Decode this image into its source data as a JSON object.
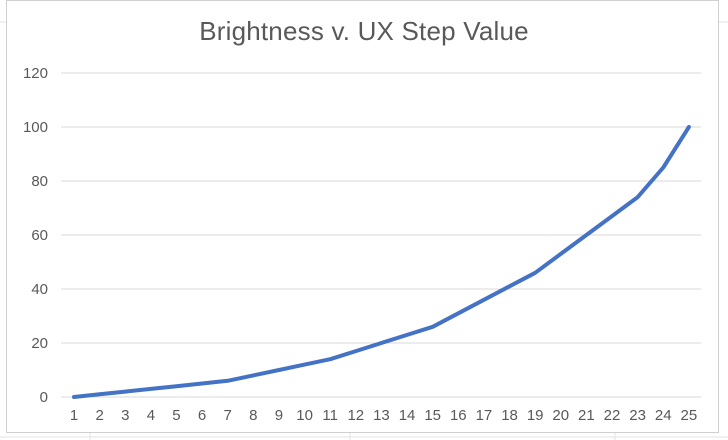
{
  "chart_data": {
    "type": "line",
    "title": "Brightness v. UX Step Value",
    "xlabel": "",
    "ylabel": "",
    "x": [
      1,
      2,
      3,
      4,
      5,
      6,
      7,
      8,
      9,
      10,
      11,
      12,
      13,
      14,
      15,
      16,
      17,
      18,
      19,
      20,
      21,
      22,
      23,
      24,
      25
    ],
    "series": [
      {
        "values": [
          0,
          1,
          2,
          3,
          4,
          5,
          6,
          8,
          10,
          12,
          14,
          17,
          20,
          23,
          26,
          31,
          36,
          41,
          46,
          53,
          60,
          67,
          74,
          85,
          100
        ]
      }
    ],
    "ylim": [
      0,
      120
    ],
    "yticks": [
      0,
      20,
      40,
      60,
      80,
      100,
      120
    ],
    "grid": true,
    "legend": "none",
    "colors": {
      "line": "#4472C4",
      "grid": "#d9d9d9",
      "text": "#595959"
    }
  }
}
